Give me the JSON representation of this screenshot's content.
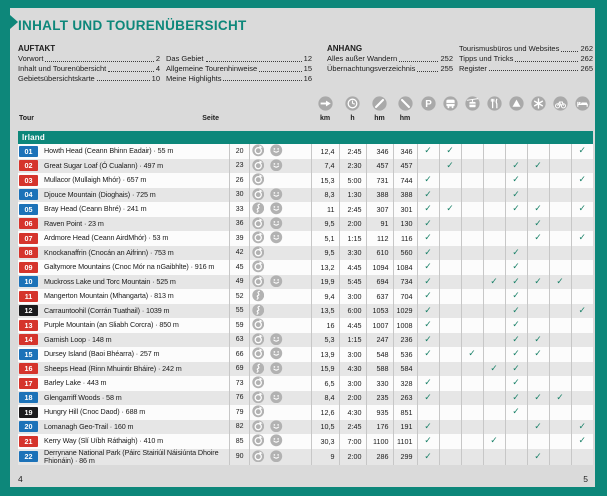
{
  "page": {
    "title": "INHALT UND TOURENÜBERSICHT",
    "footer_page_left": "4",
    "footer_page_right": "5"
  },
  "toc": {
    "auftakt": {
      "heading": "AUFTAKT",
      "col1": [
        {
          "label": "Vorwort",
          "page": "2"
        },
        {
          "label": "Inhalt und Tourenübersicht",
          "page": "4"
        },
        {
          "label": "Gebietsübersichtskarte",
          "page": "10"
        }
      ],
      "col2": [
        {
          "label": "Das Gebiet",
          "page": "12"
        },
        {
          "label": "Allgemeine Tourenhinweise",
          "page": "15"
        },
        {
          "label": "Meine Highlights",
          "page": "16"
        }
      ]
    },
    "anhang": {
      "heading": "ANHANG",
      "col1": [
        {
          "label": "Alles außer Wandern",
          "page": "252"
        },
        {
          "label": "Übernachtungsverzeichnis",
          "page": "255"
        }
      ],
      "col2": [
        {
          "label": "Tourismusbüros und Websites",
          "page": "262"
        },
        {
          "label": "Tipps und Tricks",
          "page": "262"
        },
        {
          "label": "Register",
          "page": "265"
        }
      ]
    }
  },
  "legend": {
    "icons": [
      "distance",
      "duration",
      "ascent",
      "descent",
      "parking",
      "bus",
      "cable-car",
      "restaurant",
      "summit",
      "sight",
      "bike",
      "bed"
    ],
    "units": [
      "km",
      "h",
      "hm",
      "hm"
    ]
  },
  "table": {
    "col_tour": "Tour",
    "col_page": "Seite",
    "region": "Irland",
    "check_columns": [
      "parking",
      "bus",
      "cable-car",
      "restaurant",
      "summit",
      "sight",
      "bike",
      "bed"
    ],
    "rows": [
      {
        "num": "01",
        "difficulty": "blue",
        "name": "Howth Head (Ceann Bhinn Eadair) · 55 m",
        "page": "20",
        "route": "loop",
        "family": true,
        "km": "12,4",
        "h": "2:45",
        "up": "346",
        "down": "346",
        "checks": [
          1,
          1,
          0,
          0,
          0,
          0,
          0,
          1
        ]
      },
      {
        "num": "02",
        "difficulty": "red",
        "name": "Great Sugar Loaf (Ó Cualann) · 497 m",
        "page": "23",
        "route": "loop",
        "family": true,
        "km": "7,4",
        "h": "2:30",
        "up": "457",
        "down": "457",
        "checks": [
          0,
          1,
          0,
          0,
          1,
          1,
          0,
          0
        ]
      },
      {
        "num": "03",
        "difficulty": "red",
        "name": "Mullacor (Mullaigh Mhór) · 657 m",
        "page": "26",
        "route": "loop",
        "family": false,
        "km": "15,3",
        "h": "5:00",
        "up": "731",
        "down": "744",
        "checks": [
          1,
          0,
          0,
          0,
          1,
          0,
          0,
          1
        ]
      },
      {
        "num": "04",
        "difficulty": "blue",
        "name": "Djouce Mountain (Dioghais) · 725 m",
        "page": "30",
        "route": "loop",
        "family": true,
        "km": "8,3",
        "h": "1:30",
        "up": "388",
        "down": "388",
        "checks": [
          1,
          0,
          0,
          0,
          1,
          0,
          0,
          0
        ]
      },
      {
        "num": "05",
        "difficulty": "blue",
        "name": "Bray Head (Ceann Bhré) · 241 m",
        "page": "33",
        "route": "sway",
        "family": true,
        "km": "11",
        "h": "2:45",
        "up": "307",
        "down": "301",
        "checks": [
          1,
          1,
          0,
          0,
          1,
          1,
          0,
          1
        ]
      },
      {
        "num": "06",
        "difficulty": "red",
        "name": "Raven Point · 23 m",
        "page": "36",
        "route": "loop",
        "family": true,
        "km": "9,5",
        "h": "2:00",
        "up": "91",
        "down": "130",
        "checks": [
          1,
          0,
          0,
          0,
          0,
          1,
          0,
          0
        ]
      },
      {
        "num": "07",
        "difficulty": "red",
        "name": "Ardmore Head (Ceann AirdMhór) · 53 m",
        "page": "39",
        "route": "loop",
        "family": true,
        "km": "5,1",
        "h": "1:15",
        "up": "112",
        "down": "116",
        "checks": [
          1,
          0,
          0,
          0,
          0,
          1,
          0,
          1
        ]
      },
      {
        "num": "08",
        "difficulty": "red",
        "name": "Knockanaffrin (Cnocán an Aifrinn) · 753 m",
        "page": "42",
        "route": "loop",
        "family": false,
        "km": "9,5",
        "h": "3:30",
        "up": "610",
        "down": "560",
        "checks": [
          1,
          0,
          0,
          0,
          1,
          0,
          0,
          0
        ]
      },
      {
        "num": "09",
        "difficulty": "red",
        "name": "Galtymore Mountains (Cnoc Mór na nGaibhlte) · 916 m",
        "page": "45",
        "route": "loop",
        "family": false,
        "km": "13,2",
        "h": "4:45",
        "up": "1094",
        "down": "1084",
        "checks": [
          1,
          0,
          0,
          0,
          1,
          0,
          0,
          0
        ]
      },
      {
        "num": "10",
        "difficulty": "blue",
        "name": "Muckross Lake und Torc Mountain · 525 m",
        "page": "49",
        "route": "loop",
        "family": true,
        "km": "19,9",
        "h": "5:45",
        "up": "694",
        "down": "734",
        "checks": [
          1,
          0,
          0,
          1,
          1,
          1,
          1,
          0
        ]
      },
      {
        "num": "11",
        "difficulty": "red",
        "name": "Mangerton Mountain (Mhangarta) · 813 m",
        "page": "52",
        "route": "sway",
        "family": false,
        "km": "9,4",
        "h": "3:00",
        "up": "637",
        "down": "704",
        "checks": [
          1,
          0,
          0,
          0,
          1,
          0,
          0,
          0
        ]
      },
      {
        "num": "12",
        "difficulty": "black",
        "name": "Carrauntoohil (Corrán Tuathail) · 1039 m",
        "page": "55",
        "route": "sway",
        "family": false,
        "km": "13,5",
        "h": "6:00",
        "up": "1053",
        "down": "1029",
        "checks": [
          1,
          0,
          0,
          0,
          1,
          0,
          0,
          1
        ]
      },
      {
        "num": "13",
        "difficulty": "red",
        "name": "Purple Mountain (an Sliabh Corcra) · 850 m",
        "page": "59",
        "route": "loop",
        "family": false,
        "km": "16",
        "h": "4:45",
        "up": "1007",
        "down": "1008",
        "checks": [
          1,
          0,
          0,
          0,
          1,
          0,
          0,
          0
        ]
      },
      {
        "num": "14",
        "difficulty": "red",
        "name": "Garnish Loop · 148 m",
        "page": "63",
        "route": "loop",
        "family": true,
        "km": "5,3",
        "h": "1:15",
        "up": "247",
        "down": "236",
        "checks": [
          1,
          0,
          0,
          0,
          1,
          1,
          0,
          0
        ]
      },
      {
        "num": "15",
        "difficulty": "blue",
        "name": "Dursey Island (Baoi Bhéarra) · 257 m",
        "page": "66",
        "route": "loop",
        "family": true,
        "km": "13,9",
        "h": "3:00",
        "up": "548",
        "down": "536",
        "checks": [
          1,
          0,
          1,
          0,
          1,
          1,
          0,
          0
        ]
      },
      {
        "num": "16",
        "difficulty": "red",
        "name": "Sheeps Head (Rinn Mhuintir Bháire) · 242 m",
        "page": "69",
        "route": "sway",
        "family": true,
        "km": "15,9",
        "h": "4:30",
        "up": "588",
        "down": "584",
        "checks": [
          0,
          0,
          0,
          1,
          1,
          0,
          0,
          0
        ]
      },
      {
        "num": "17",
        "difficulty": "red",
        "name": "Barley Lake · 443 m",
        "page": "73",
        "route": "loop",
        "family": false,
        "km": "6,5",
        "h": "3:00",
        "up": "330",
        "down": "328",
        "checks": [
          1,
          0,
          0,
          0,
          1,
          0,
          0,
          0
        ]
      },
      {
        "num": "18",
        "difficulty": "blue",
        "name": "Glengarriff Woods · 58 m",
        "page": "76",
        "route": "loop",
        "family": true,
        "km": "8,4",
        "h": "2:00",
        "up": "235",
        "down": "263",
        "checks": [
          1,
          0,
          0,
          0,
          1,
          1,
          1,
          0
        ]
      },
      {
        "num": "19",
        "difficulty": "black",
        "name": "Hungry Hill (Cnoc Daod) · 688 m",
        "page": "79",
        "route": "loop",
        "family": false,
        "km": "12,6",
        "h": "4:30",
        "up": "935",
        "down": "851",
        "checks": [
          0,
          0,
          0,
          0,
          1,
          0,
          0,
          0
        ]
      },
      {
        "num": "20",
        "difficulty": "blue",
        "name": "Lomanagh Geo-Trail · 160 m",
        "page": "82",
        "route": "loop",
        "family": true,
        "km": "10,5",
        "h": "2:45",
        "up": "176",
        "down": "191",
        "checks": [
          1,
          0,
          0,
          0,
          0,
          1,
          0,
          1
        ]
      },
      {
        "num": "21",
        "difficulty": "red",
        "name": "Kerry Way (Slí Uíbh Ráthaigh) · 410 m",
        "page": "85",
        "route": "loop",
        "family": true,
        "km": "30,3",
        "h": "7:00",
        "up": "1100",
        "down": "1101",
        "checks": [
          1,
          0,
          0,
          1,
          0,
          0,
          0,
          1
        ]
      },
      {
        "num": "22",
        "difficulty": "blue",
        "name": "Derrynane National Park (Páirc Stairiúil Náisiúnta Dhoire Fhionáin) · 86 m",
        "page": "90",
        "route": "loop",
        "family": true,
        "km": "9",
        "h": "2:00",
        "up": "286",
        "down": "299",
        "checks": [
          1,
          0,
          0,
          0,
          0,
          1,
          0,
          0
        ]
      }
    ]
  },
  "colors": {
    "accent_teal": "#0d877a",
    "badge_blue": "#1c72b8",
    "badge_red": "#d5342c",
    "badge_black": "#1b1b1d",
    "check_green": "#1a8168",
    "icon_gray": "#a9a9a9",
    "row_gray": "#e6e6e6",
    "row_white": "#fcfcfc",
    "paper_gray": "#dadada"
  }
}
